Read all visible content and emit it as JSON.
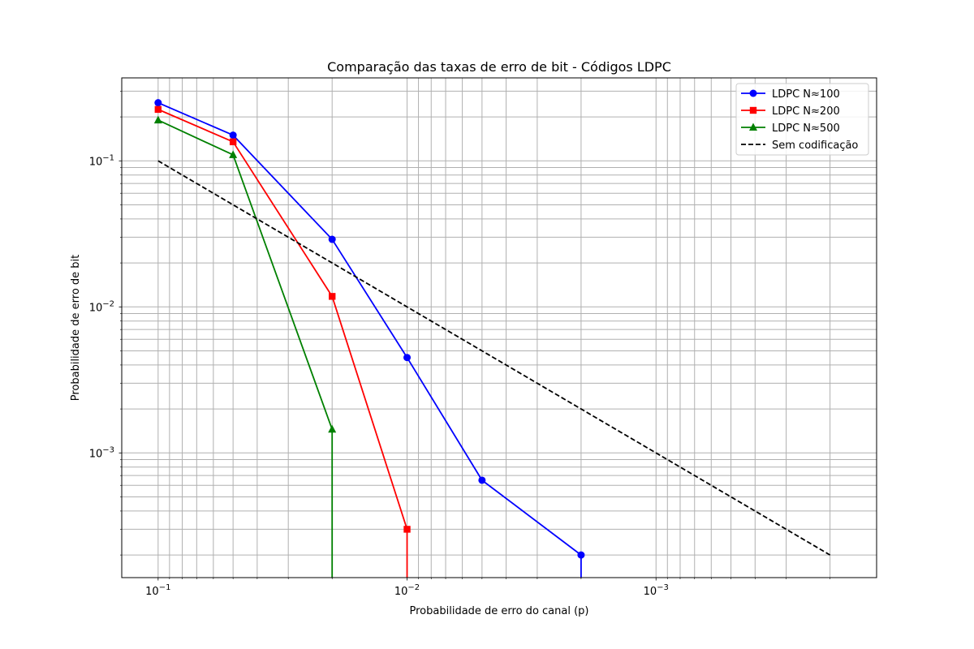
{
  "chart_data": {
    "type": "line",
    "title": "Comparação das taxas de erro de bit - Códigos LDPC",
    "xlabel": "Probabilidade de erro do canal (p)",
    "ylabel": "Probabilidade de erro de bit",
    "x_scale": "log",
    "y_scale": "log",
    "x_inverted": true,
    "xlim": [
      0.14,
      0.00013
    ],
    "ylim": [
      0.00014,
      0.37
    ],
    "grid": "on (major and minor)",
    "legend_position": "top-right",
    "x_ticks": [
      {
        "value": 0.1,
        "base": "10",
        "exp": "−1"
      },
      {
        "value": 0.01,
        "base": "10",
        "exp": "−2"
      },
      {
        "value": 0.001,
        "base": "10",
        "exp": "−3"
      }
    ],
    "y_ticks": [
      {
        "value": 0.1,
        "base": "10",
        "exp": "−1"
      },
      {
        "value": 0.01,
        "base": "10",
        "exp": "−2"
      },
      {
        "value": 0.001,
        "base": "10",
        "exp": "−3"
      }
    ],
    "series": [
      {
        "name": "LDPC N≈100",
        "color": "#0000ff",
        "marker": "circle",
        "style": "solid",
        "x": [
          0.1,
          0.05,
          0.02,
          0.01,
          0.005,
          0.002
        ],
        "y": [
          0.25,
          0.15,
          0.029,
          0.0045,
          0.00065,
          0.0002
        ],
        "drop_to_zero_at_x": 0.002
      },
      {
        "name": "LDPC N≈200",
        "color": "#ff0000",
        "marker": "square",
        "style": "solid",
        "x": [
          0.1,
          0.05,
          0.02,
          0.01
        ],
        "y": [
          0.225,
          0.135,
          0.0118,
          0.0003
        ],
        "drop_to_zero_at_x": 0.01
      },
      {
        "name": "LDPC N≈500",
        "color": "#008000",
        "marker": "triangle",
        "style": "solid",
        "x": [
          0.1,
          0.05,
          0.02
        ],
        "y": [
          0.19,
          0.11,
          0.00145
        ],
        "drop_to_zero_at_x": 0.02
      },
      {
        "name": "Sem codificação",
        "color": "#000000",
        "marker": "none",
        "style": "dashed",
        "x": [
          0.1,
          0.0002
        ],
        "y": [
          0.1,
          0.0002
        ]
      }
    ]
  }
}
